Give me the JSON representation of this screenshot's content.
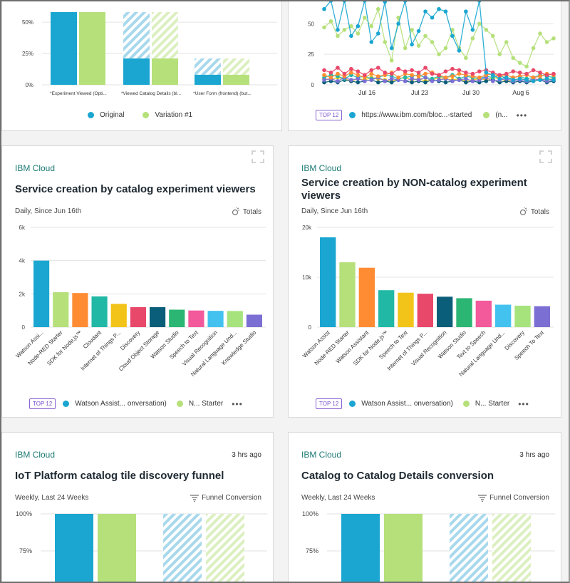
{
  "colors": {
    "original": "#1aa6d1",
    "variation": "#b5e07a",
    "brand": "#1d7a74",
    "badge": "#7a4fcf"
  },
  "top_left": {
    "chart_data": {
      "type": "bar",
      "categories": [
        "*Experiment Viewed (Opti...",
        "*Viewed Catalog Details (bl...",
        "*User Form (frontend) (but..."
      ],
      "series": [
        {
          "name": "Original",
          "solid": [
            58,
            21,
            8
          ],
          "hatched": [
            0,
            37,
            13
          ]
        },
        {
          "name": "Variation #1",
          "solid": [
            58,
            21,
            8
          ],
          "hatched": [
            0,
            37,
            13
          ]
        }
      ],
      "y_ticks": [
        "50%",
        "25%",
        "0%"
      ],
      "ylim": [
        0,
        58
      ]
    },
    "legend": [
      "Original",
      "Variation #1"
    ]
  },
  "top_right": {
    "chart_data": {
      "type": "line",
      "x_labels": [
        "Jul 16",
        "Jul 23",
        "Jul 30",
        "Aug 6"
      ],
      "y_ticks": [
        "50",
        "25",
        "0"
      ],
      "ylim": [
        0,
        70
      ],
      "series": [
        {
          "color": "#1aa6d1",
          "values": [
            62,
            72,
            45,
            70,
            40,
            48,
            70,
            35,
            42,
            68,
            30,
            50,
            72,
            33,
            44,
            60,
            55,
            62,
            60,
            40,
            28,
            60,
            45,
            70,
            10,
            8,
            5,
            6,
            4,
            5,
            4,
            3,
            4,
            5,
            4
          ]
        },
        {
          "color": "#b5e07a",
          "values": [
            47,
            52,
            40,
            45,
            48,
            42,
            55,
            48,
            62,
            35,
            20,
            55,
            30,
            45,
            32,
            40,
            35,
            25,
            30,
            45,
            30,
            22,
            38,
            50,
            45,
            40,
            25,
            35,
            22,
            18,
            15,
            30,
            42,
            35,
            38
          ]
        },
        {
          "color": "#e8486a",
          "values": [
            12,
            10,
            14,
            9,
            13,
            11,
            8,
            12,
            14,
            10,
            9,
            13,
            11,
            12,
            10,
            14,
            9,
            8,
            11,
            13,
            12,
            10,
            9,
            11,
            12,
            10,
            8,
            9,
            11,
            10,
            9,
            12,
            10,
            8,
            9
          ]
        },
        {
          "color": "#ff8c33",
          "values": [
            8,
            6,
            9,
            7,
            10,
            8,
            6,
            9,
            7,
            8,
            10,
            6,
            9,
            8,
            7,
            9,
            10,
            8,
            6,
            7,
            9,
            8,
            7,
            6,
            8,
            9,
            7,
            8,
            6,
            7,
            8,
            6,
            7,
            9,
            8
          ]
        },
        {
          "color": "#7c6fd4",
          "values": [
            4,
            5,
            3,
            6,
            4,
            5,
            3,
            4,
            6,
            3,
            5,
            4,
            3,
            5,
            4,
            6,
            3,
            4,
            5,
            3,
            4,
            5,
            3,
            4,
            6,
            3,
            4,
            5,
            3,
            4,
            3,
            5,
            4,
            3,
            4
          ]
        },
        {
          "color": "#22b8a6",
          "values": [
            6,
            8,
            7,
            5,
            8,
            6,
            7,
            5,
            6,
            8,
            7,
            5,
            6,
            7,
            8,
            6,
            5,
            7,
            6,
            8,
            5,
            7,
            6,
            5,
            7,
            6,
            8,
            5,
            6,
            7,
            5,
            6,
            8,
            7,
            6
          ]
        },
        {
          "color": "#0b5e7a",
          "values": [
            2,
            3,
            2,
            4,
            3,
            2,
            3,
            4,
            2,
            3,
            2,
            4,
            3,
            2,
            3,
            2,
            4,
            3,
            2,
            3,
            4,
            2,
            3,
            2,
            3,
            4,
            2,
            3,
            2,
            3,
            2,
            3,
            4,
            2,
            3
          ]
        },
        {
          "color": "#f2c419",
          "values": [
            5,
            4,
            6,
            5,
            3,
            5,
            4,
            6,
            5,
            4,
            3,
            5,
            6,
            4,
            5,
            3,
            4,
            6,
            5,
            4,
            5,
            3,
            4,
            5,
            4,
            6,
            5,
            3,
            4,
            5,
            4,
            3,
            5,
            4,
            5
          ]
        }
      ]
    },
    "badge": "TOP 12",
    "legend": [
      "https://www.ibm.com/bloc...-started",
      "(n..."
    ]
  },
  "mid_left": {
    "brand": "IBM Cloud",
    "title": "Service creation by catalog experiment viewers",
    "subtitle": "Daily, Since Jun 16th",
    "mode": "Totals",
    "chart_data": {
      "type": "bar",
      "categories": [
        "Watson Assi...",
        "Node-RED Starter",
        "SDK for Node.js™",
        "Cloudant",
        "Internet of Things P...",
        "Discovery",
        "Cloud Object Storage",
        "Watson Studio",
        "Speech to Text",
        "Visual Recognition",
        "Natural Language Und...",
        "Knowledge Studio"
      ],
      "values": [
        4000,
        2100,
        2050,
        1850,
        1400,
        1200,
        1200,
        1050,
        1000,
        980,
        970,
        750
      ],
      "colors": [
        "#1aa6d1",
        "#b5e07a",
        "#ff8c33",
        "#22b8a6",
        "#f2c419",
        "#e8486a",
        "#0b5e7a",
        "#2bb673",
        "#f25a9b",
        "#44c2ef",
        "#a6e37d",
        "#7c6fd4"
      ],
      "y_ticks": [
        "6k",
        "4k",
        "2k",
        "0"
      ],
      "ylim": [
        0,
        6000
      ]
    },
    "badge": "TOP 12",
    "legend": [
      "Watson Assist... onversation)",
      "N...  Starter"
    ]
  },
  "mid_right": {
    "brand": "IBM Cloud",
    "title_line1": "Service creation by NON-catalog experiment",
    "title_line2": "viewers",
    "subtitle": "Daily, Since Jun 16th",
    "mode": "Totals",
    "chart_data": {
      "type": "bar",
      "categories": [
        "Watson Assist",
        "Node-RED Starter",
        "Watson Assistant",
        "SDK for Node.js™",
        "Speech to Text",
        "Internet of Things P...",
        "Visual Recognition",
        "Watson Studio",
        "Text to Speech",
        "Natural Language Und...",
        "Discovery",
        "Speech To Text"
      ],
      "values": [
        18000,
        13000,
        11900,
        7400,
        6900,
        6700,
        6100,
        5800,
        5300,
        4500,
        4300,
        4200
      ],
      "colors": [
        "#1aa6d1",
        "#b5e07a",
        "#ff8c33",
        "#22b8a6",
        "#f2c419",
        "#e8486a",
        "#0b5e7a",
        "#2bb673",
        "#f25a9b",
        "#44c2ef",
        "#a6e37d",
        "#7c6fd4"
      ],
      "y_ticks": [
        "20k",
        "10k",
        "0"
      ],
      "ylim": [
        0,
        20000
      ]
    },
    "badge": "TOP 12",
    "legend": [
      "Watson Assist... onversation)",
      "N...  Starter"
    ]
  },
  "bottom_left": {
    "brand": "IBM Cloud",
    "ago": "3 hrs ago",
    "title": "IoT Platform catalog tile discovery funnel",
    "subtitle": "Weekly, Last 24 Weeks",
    "mode": "Funnel Conversion",
    "y_ticks": [
      "100%",
      "75%"
    ]
  },
  "bottom_right": {
    "brand": "IBM Cloud",
    "ago": "3 hrs ago",
    "title": "Catalog to Catalog Details conversion",
    "subtitle": "Weekly, Last 24 Weeks",
    "mode": "Funnel Conversion",
    "y_ticks": [
      "100%",
      "75%"
    ]
  }
}
